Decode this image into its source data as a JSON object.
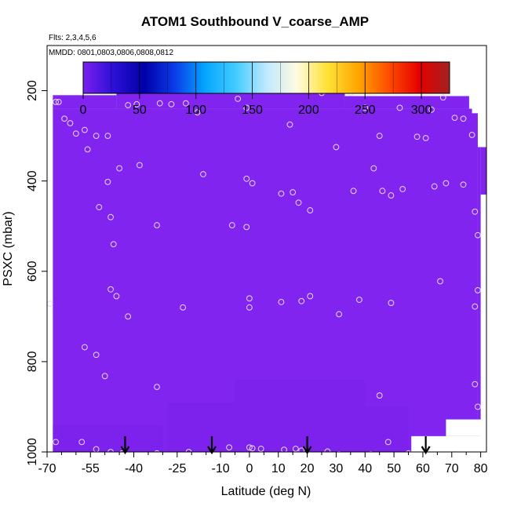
{
  "title": "ATOM1 Southbound V_coarse_AMP",
  "flights_note": "Flts: 2,3,4,5,6",
  "dates_note": "MMDD: 0801,0803,0806,0808,0812",
  "colorbar": {
    "ticks": [
      "0",
      "50",
      "100",
      "150",
      "200",
      "250",
      "300"
    ],
    "stops": [
      "#7a1fef",
      "#2c10d6",
      "#0000a8",
      "#0a3ce8",
      "#06a6ff",
      "#42ccff",
      "#bfe9ff",
      "#fffbe0",
      "#ffe135",
      "#ffa600",
      "#ff4d00",
      "#e60000",
      "#a32020"
    ]
  },
  "chart_data": {
    "type": "heatmap",
    "xlabel": "Latitude (deg N)",
    "ylabel": "PSXC (mbar)",
    "xlim": [
      -70,
      82
    ],
    "ylim": [
      1000,
      100
    ],
    "x_ticks": [
      "-70",
      "-55",
      "-40",
      "-25",
      "-10",
      "0",
      "10",
      "20",
      "30",
      "40",
      "50",
      "60",
      "70",
      "80"
    ],
    "y_ticks": [
      "200",
      "400",
      "600",
      "800",
      "1000"
    ],
    "x_tick_values": [
      -70,
      -55,
      -40,
      -25,
      -10,
      0,
      10,
      20,
      30,
      40,
      50,
      60,
      70,
      80
    ],
    "y_tick_values": [
      200,
      400,
      600,
      800,
      1000
    ],
    "x_minor_ticks": [
      -65,
      -60,
      -50,
      -45,
      -35,
      -30,
      -20,
      -15,
      -5,
      5,
      15,
      25,
      35,
      45,
      55,
      65,
      75
    ],
    "colorbar_range": [
      0,
      325
    ],
    "field_value": 2,
    "field_color": "#8124f0",
    "darker_patch_color": "#7a22ea",
    "arrows_latitude": [
      -43,
      -13,
      20,
      61
    ],
    "observations": [
      [
        -67,
        225
      ],
      [
        -66,
        225
      ],
      [
        -64,
        262
      ],
      [
        -62,
        272
      ],
      [
        -57,
        287
      ],
      [
        -60,
        295
      ],
      [
        -53,
        300
      ],
      [
        -49,
        300
      ],
      [
        -56,
        330
      ],
      [
        -42,
        232
      ],
      [
        -39,
        230
      ],
      [
        -31,
        228
      ],
      [
        -27,
        230
      ],
      [
        -22,
        228
      ],
      [
        -18,
        248
      ],
      [
        -4,
        218
      ],
      [
        -1,
        238
      ],
      [
        -45,
        372
      ],
      [
        -49,
        402
      ],
      [
        -38,
        365
      ],
      [
        -16,
        385
      ],
      [
        -1,
        395
      ],
      [
        1,
        405
      ],
      [
        -52,
        458
      ],
      [
        -48,
        480
      ],
      [
        -47,
        540
      ],
      [
        -32,
        498
      ],
      [
        -6,
        498
      ],
      [
        -1,
        502
      ],
      [
        14,
        275
      ],
      [
        25,
        205
      ],
      [
        28,
        180
      ],
      [
        30,
        325
      ],
      [
        35,
        205
      ],
      [
        40,
        238
      ],
      [
        45,
        300
      ],
      [
        52,
        238
      ],
      [
        58,
        302
      ],
      [
        61,
        305
      ],
      [
        63,
        242
      ],
      [
        67,
        215
      ],
      [
        71,
        260
      ],
      [
        74,
        262
      ],
      [
        77,
        298
      ],
      [
        64,
        412
      ],
      [
        68,
        405
      ],
      [
        74,
        408
      ],
      [
        78,
        468
      ],
      [
        79,
        520
      ],
      [
        43,
        372
      ],
      [
        46,
        422
      ],
      [
        49,
        432
      ],
      [
        53,
        418
      ],
      [
        36,
        422
      ],
      [
        11,
        428
      ],
      [
        15,
        425
      ],
      [
        17,
        448
      ],
      [
        21,
        465
      ],
      [
        -48,
        640
      ],
      [
        -46,
        655
      ],
      [
        -42,
        700
      ],
      [
        -23,
        680
      ],
      [
        0,
        660
      ],
      [
        0,
        680
      ],
      [
        11,
        668
      ],
      [
        18,
        666
      ],
      [
        21,
        655
      ],
      [
        31,
        695
      ],
      [
        38,
        663
      ],
      [
        49,
        670
      ],
      [
        66,
        622
      ],
      [
        79,
        642
      ],
      [
        78,
        678
      ],
      [
        -69,
        672
      ],
      [
        -57,
        768
      ],
      [
        -53,
        785
      ],
      [
        -50,
        832
      ],
      [
        -32,
        856
      ],
      [
        78,
        850
      ],
      [
        79,
        900
      ],
      [
        45,
        875
      ],
      [
        -67,
        978
      ],
      [
        -58,
        978
      ],
      [
        -53,
        994
      ],
      [
        -48,
        1000
      ],
      [
        -44,
        1003
      ],
      [
        -32,
        1003
      ],
      [
        -21,
        1000
      ],
      [
        -7,
        990
      ],
      [
        0,
        990
      ],
      [
        1,
        992
      ],
      [
        4,
        993
      ],
      [
        12,
        995
      ],
      [
        16,
        993
      ],
      [
        18,
        997
      ],
      [
        27,
        999
      ],
      [
        31,
        1005
      ],
      [
        42,
        1005
      ],
      [
        48,
        978
      ],
      [
        55,
        1003
      ],
      [
        71,
        1005
      ]
    ]
  }
}
